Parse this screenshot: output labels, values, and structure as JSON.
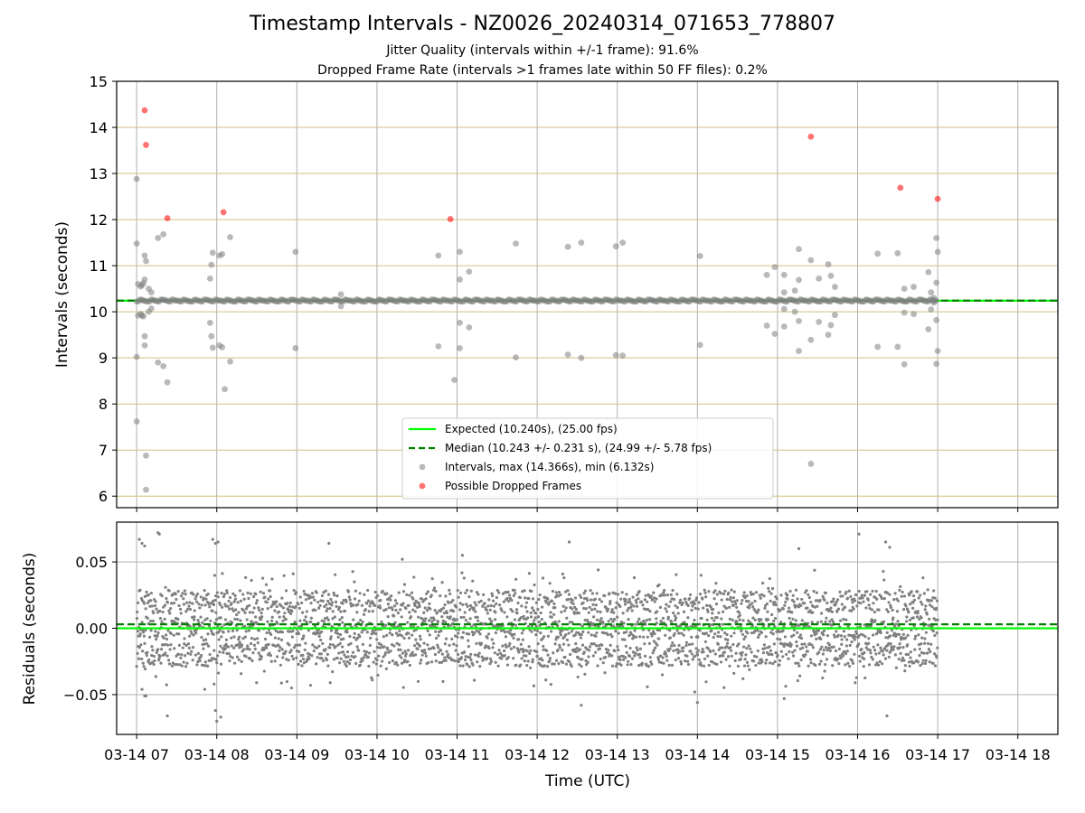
{
  "chart_data": [
    {
      "type": "scatter",
      "title": "Timestamp Intervals - NZ0026_20240314_071653_778807",
      "subtitle_1": "Jitter Quality (intervals within +/-1 frame): 91.6%",
      "subtitle_2": "Dropped Frame Rate (intervals >1 frames late within 50 FF files): 0.2%",
      "ylabel": "Intervals (seconds)",
      "ylim": [
        5.75,
        15.0
      ],
      "yticks": [
        "6",
        "7",
        "8",
        "9",
        "10",
        "11",
        "12",
        "13",
        "14",
        "15"
      ],
      "y_tick_values": [
        6,
        7,
        8,
        9,
        10,
        11,
        12,
        13,
        14,
        15
      ],
      "xlim": [
        "2024-03-14 06:45",
        "2024-03-14 18:30"
      ],
      "grid": "horizontal tan lines at each y tick, vertical gray lines at each x tick",
      "legend_position": "lower center",
      "expected_value": 10.24,
      "median_value": 10.243,
      "legend": [
        {
          "label": "Expected (10.240s), (25.00 fps)",
          "color": "#00ff00",
          "style": "solid"
        },
        {
          "label": "Median (10.243 +/- 0.231 s), (24.99 +/- 5.78 fps)",
          "color": "#008000",
          "style": "dashed"
        },
        {
          "label": "Intervals, max (14.366s), min (6.132s)",
          "color": "#808080",
          "style": "marker"
        },
        {
          "label": "Possible Dropped Frames",
          "color": "#ff0000",
          "style": "marker"
        }
      ],
      "series": [
        {
          "name": "Intervals, max (14.366s), min (6.132s)",
          "color": "#808080",
          "points": [
            [
              "2024-03-14 07:00",
              12.88
            ],
            [
              "2024-03-14 07:00",
              11.48
            ],
            [
              "2024-03-14 07:00",
              9.02
            ],
            [
              "2024-03-14 07:00",
              7.62
            ],
            [
              "2024-03-14 07:01",
              10.6
            ],
            [
              "2024-03-14 07:01",
              9.92
            ],
            [
              "2024-03-14 07:03",
              10.55
            ],
            [
              "2024-03-14 07:03",
              9.95
            ],
            [
              "2024-03-14 07:04",
              10.58
            ],
            [
              "2024-03-14 07:04",
              9.92
            ],
            [
              "2024-03-14 07:05",
              10.62
            ],
            [
              "2024-03-14 07:05",
              9.9
            ],
            [
              "2024-03-14 07:06",
              11.22
            ],
            [
              "2024-03-14 07:06",
              10.7
            ],
            [
              "2024-03-14 07:06",
              9.47
            ],
            [
              "2024-03-14 07:06",
              9.27
            ],
            [
              "2024-03-14 07:07",
              11.1
            ],
            [
              "2024-03-14 07:07",
              6.88
            ],
            [
              "2024-03-14 07:07",
              6.14
            ],
            [
              "2024-03-14 07:09",
              10.5
            ],
            [
              "2024-03-14 07:09",
              10.0
            ],
            [
              "2024-03-14 07:11",
              10.42
            ],
            [
              "2024-03-14 07:11",
              10.07
            ],
            [
              "2024-03-14 07:16",
              11.6
            ],
            [
              "2024-03-14 07:16",
              8.9
            ],
            [
              "2024-03-14 07:20",
              11.68
            ],
            [
              "2024-03-14 07:20",
              8.82
            ],
            [
              "2024-03-14 07:23",
              8.47
            ],
            [
              "2024-03-14 07:55",
              10.72
            ],
            [
              "2024-03-14 07:55",
              9.76
            ],
            [
              "2024-03-14 07:56",
              11.02
            ],
            [
              "2024-03-14 07:56",
              9.47
            ],
            [
              "2024-03-14 07:57",
              11.28
            ],
            [
              "2024-03-14 07:57",
              9.22
            ],
            [
              "2024-03-14 08:02",
              11.22
            ],
            [
              "2024-03-14 08:02",
              9.27
            ],
            [
              "2024-03-14 08:04",
              11.25
            ],
            [
              "2024-03-14 08:04",
              9.23
            ],
            [
              "2024-03-14 08:06",
              8.32
            ],
            [
              "2024-03-14 08:10",
              11.62
            ],
            [
              "2024-03-14 08:10",
              8.92
            ],
            [
              "2024-03-14 08:59",
              11.3
            ],
            [
              "2024-03-14 08:59",
              9.21
            ],
            [
              "2024-03-14 09:33",
              10.38
            ],
            [
              "2024-03-14 09:33",
              10.12
            ],
            [
              "2024-03-14 10:46",
              11.22
            ],
            [
              "2024-03-14 10:46",
              9.25
            ],
            [
              "2024-03-14 10:58",
              8.52
            ],
            [
              "2024-03-14 11:02",
              11.3
            ],
            [
              "2024-03-14 11:02",
              10.7
            ],
            [
              "2024-03-14 11:02",
              9.76
            ],
            [
              "2024-03-14 11:02",
              9.21
            ],
            [
              "2024-03-14 11:09",
              10.87
            ],
            [
              "2024-03-14 11:09",
              9.66
            ],
            [
              "2024-03-14 11:44",
              11.48
            ],
            [
              "2024-03-14 11:44",
              9.01
            ],
            [
              "2024-03-14 12:23",
              11.41
            ],
            [
              "2024-03-14 12:23",
              9.07
            ],
            [
              "2024-03-14 12:33",
              11.5
            ],
            [
              "2024-03-14 12:33",
              9.0
            ],
            [
              "2024-03-14 12:59",
              11.42
            ],
            [
              "2024-03-14 12:59",
              9.06
            ],
            [
              "2024-03-14 13:04",
              11.5
            ],
            [
              "2024-03-14 13:04",
              9.05
            ],
            [
              "2024-03-14 14:02",
              11.21
            ],
            [
              "2024-03-14 14:02",
              9.28
            ],
            [
              "2024-03-14 14:52",
              10.8
            ],
            [
              "2024-03-14 14:52",
              9.7
            ],
            [
              "2024-03-14 14:58",
              10.97
            ],
            [
              "2024-03-14 14:58",
              9.52
            ],
            [
              "2024-03-14 15:05",
              10.8
            ],
            [
              "2024-03-14 15:05",
              10.42
            ],
            [
              "2024-03-14 15:05",
              10.06
            ],
            [
              "2024-03-14 15:05",
              9.68
            ],
            [
              "2024-03-14 15:13",
              10.46
            ],
            [
              "2024-03-14 15:13",
              10.0
            ],
            [
              "2024-03-14 15:16",
              11.36
            ],
            [
              "2024-03-14 15:16",
              10.69
            ],
            [
              "2024-03-14 15:16",
              9.8
            ],
            [
              "2024-03-14 15:16",
              9.15
            ],
            [
              "2024-03-14 15:25",
              11.12
            ],
            [
              "2024-03-14 15:25",
              9.39
            ],
            [
              "2024-03-14 15:25",
              6.7
            ],
            [
              "2024-03-14 15:31",
              10.72
            ],
            [
              "2024-03-14 15:31",
              9.78
            ],
            [
              "2024-03-14 15:38",
              11.03
            ],
            [
              "2024-03-14 15:38",
              9.5
            ],
            [
              "2024-03-14 15:40",
              10.78
            ],
            [
              "2024-03-14 15:40",
              9.71
            ],
            [
              "2024-03-14 15:43",
              10.54
            ],
            [
              "2024-03-14 15:43",
              9.93
            ],
            [
              "2024-03-14 16:15",
              11.26
            ],
            [
              "2024-03-14 16:15",
              9.24
            ],
            [
              "2024-03-14 16:30",
              11.27
            ],
            [
              "2024-03-14 16:30",
              9.24
            ],
            [
              "2024-03-14 16:35",
              10.5
            ],
            [
              "2024-03-14 16:35",
              9.98
            ],
            [
              "2024-03-14 16:35",
              8.86
            ],
            [
              "2024-03-14 16:42",
              10.54
            ],
            [
              "2024-03-14 16:42",
              9.95
            ],
            [
              "2024-03-14 16:53",
              10.86
            ],
            [
              "2024-03-14 16:53",
              9.62
            ],
            [
              "2024-03-14 16:55",
              10.42
            ],
            [
              "2024-03-14 16:55",
              10.05
            ],
            [
              "2024-03-14 16:57",
              10.3
            ],
            [
              "2024-03-14 16:57",
              10.2
            ],
            [
              "2024-03-14 16:59",
              11.6
            ],
            [
              "2024-03-14 16:59",
              10.63
            ],
            [
              "2024-03-14 16:59",
              9.82
            ],
            [
              "2024-03-14 16:59",
              8.87
            ],
            [
              "2024-03-14 17:00",
              11.3
            ],
            [
              "2024-03-14 17:00",
              9.15
            ]
          ]
        },
        {
          "name": "Possible Dropped Frames",
          "color": "#ff0000",
          "points": [
            [
              "2024-03-14 07:06",
              14.37
            ],
            [
              "2024-03-14 07:07",
              13.62
            ],
            [
              "2024-03-14 07:23",
              12.03
            ],
            [
              "2024-03-14 08:05",
              12.16
            ],
            [
              "2024-03-14 10:55",
              12.01
            ],
            [
              "2024-03-14 15:25",
              13.8
            ],
            [
              "2024-03-14 16:32",
              12.69
            ],
            [
              "2024-03-14 17:00",
              12.45
            ]
          ]
        }
      ]
    },
    {
      "type": "scatter",
      "ylabel": "Residuals (seconds)",
      "xlabel": "Time (UTC)",
      "ylim": [
        -0.08,
        0.08
      ],
      "yticks": [
        "−0.05",
        "0.00",
        "0.05"
      ],
      "y_tick_values": [
        -0.05,
        0.0,
        0.05
      ],
      "xlim": [
        "2024-03-14 06:45",
        "2024-03-14 18:30"
      ],
      "xticks": [
        "03-14 07",
        "03-14 08",
        "03-14 09",
        "03-14 10",
        "03-14 11",
        "03-14 12",
        "03-14 13",
        "03-14 14",
        "03-14 15",
        "03-14 16",
        "03-14 17",
        "03-14 18"
      ],
      "x_tick_values": [
        "2024-03-14 07:00",
        "2024-03-14 08:00",
        "2024-03-14 09:00",
        "2024-03-14 10:00",
        "2024-03-14 11:00",
        "2024-03-14 12:00",
        "2024-03-14 13:00",
        "2024-03-14 14:00",
        "2024-03-14 15:00",
        "2024-03-14 16:00",
        "2024-03-14 17:00",
        "2024-03-14 18:00"
      ],
      "grid": "horizontal and vertical gray lines at each tick",
      "expected_value": 0.0,
      "median_value": 0.003,
      "residual_sample_count": 3000,
      "residual_value_range": [
        -0.07,
        0.072
      ],
      "residual_levels": [
        -0.02,
        0.0,
        0.02
      ],
      "residual_time_range": [
        "2024-03-14 07:00",
        "2024-03-14 17:00"
      ],
      "series": [
        {
          "name": "Residuals",
          "color": "#808080",
          "points": [
            [
              "2024-03-14 07:02",
              0.067
            ],
            [
              "2024-03-14 07:04",
              0.064
            ],
            [
              "2024-03-14 07:06",
              0.062
            ],
            [
              "2024-03-14 07:04",
              -0.046
            ],
            [
              "2024-03-14 07:06",
              -0.051
            ],
            [
              "2024-03-14 07:07",
              -0.051
            ],
            [
              "2024-03-14 07:16",
              0.072
            ],
            [
              "2024-03-14 07:17",
              0.071
            ],
            [
              "2024-03-14 07:23",
              -0.066
            ],
            [
              "2024-03-14 07:51",
              -0.046
            ],
            [
              "2024-03-14 07:57",
              0.067
            ],
            [
              "2024-03-14 07:59",
              0.064
            ],
            [
              "2024-03-14 08:01",
              0.065
            ],
            [
              "2024-03-14 07:59",
              -0.062
            ],
            [
              "2024-03-14 08:00",
              -0.07
            ],
            [
              "2024-03-14 08:03",
              -0.067
            ],
            [
              "2024-03-14 07:58",
              -0.042
            ],
            [
              "2024-03-14 08:56",
              -0.045
            ],
            [
              "2024-03-14 09:24",
              0.064
            ],
            [
              "2024-03-14 09:25",
              -0.041
            ],
            [
              "2024-03-14 12:24",
              0.065
            ],
            [
              "2024-03-14 12:33",
              -0.058
            ],
            [
              "2024-03-14 14:00",
              -0.056
            ],
            [
              "2024-03-14 13:58",
              -0.048
            ],
            [
              "2024-03-14 15:05",
              -0.053
            ],
            [
              "2024-03-14 16:01",
              0.071
            ],
            [
              "2024-03-14 16:21",
              0.065
            ],
            [
              "2024-03-14 16:24",
              0.061
            ],
            [
              "2024-03-14 16:22",
              -0.066
            ],
            [
              "2024-03-14 15:16",
              0.06
            ],
            [
              "2024-03-14 11:04",
              0.055
            ],
            [
              "2024-03-14 10:19",
              0.052
            ]
          ]
        }
      ]
    }
  ]
}
